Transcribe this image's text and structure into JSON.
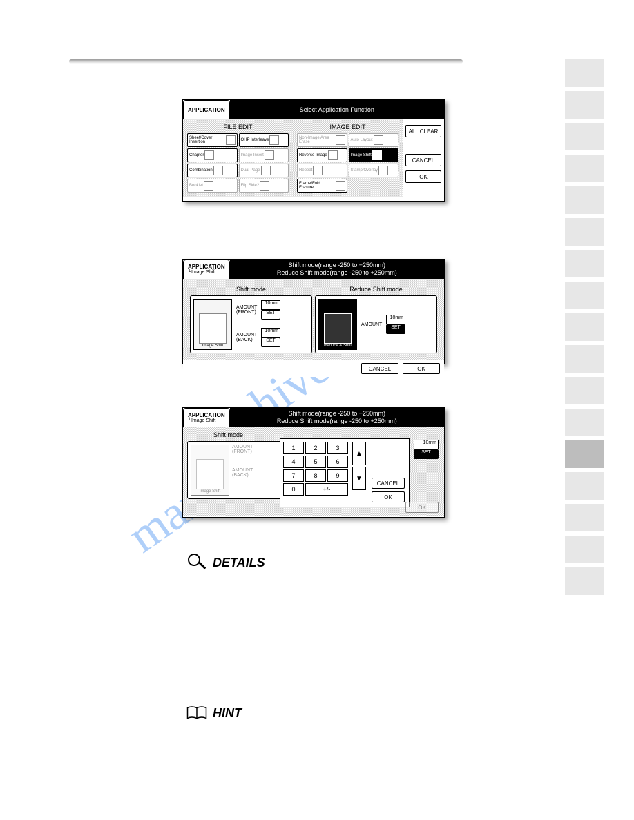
{
  "watermark": "manualshive.com",
  "sidebar": {
    "active_index": 12,
    "count": 17
  },
  "details_label": "DETAILS",
  "hint_label": "HINT",
  "screen1": {
    "tab": "APPLICATION",
    "title": "Select Application Function",
    "file_edit_label": "FILE EDIT",
    "image_edit_label": "IMAGE EDIT",
    "buttons": {
      "all_clear": "ALL CLEAR",
      "cancel": "CANCEL",
      "ok": "OK"
    },
    "file_edit": [
      {
        "label": "Sheet/Cover Insertion",
        "dim": false
      },
      {
        "label": "OHP Interleave",
        "dim": false
      },
      {
        "label": "Chapter",
        "dim": false
      },
      {
        "label": "Image Insert",
        "dim": true
      },
      {
        "label": "Combination",
        "dim": false
      },
      {
        "label": "Dual Page",
        "dim": true
      },
      {
        "label": "Booklet",
        "dim": true
      },
      {
        "label": "Flip Side2",
        "dim": true
      }
    ],
    "image_edit": [
      {
        "label": "Non-Image Area Erase",
        "dim": true
      },
      {
        "label": "Auto Layout",
        "dim": true
      },
      {
        "label": "Reverse Image",
        "dim": false,
        "extra": "A▸A"
      },
      {
        "label": "Image Shift",
        "dim": false,
        "sel": true
      },
      {
        "label": "Repeat",
        "dim": true
      },
      {
        "label": "Stamp/Overlay",
        "dim": true
      },
      {
        "label": "Frame/Fold Erasure",
        "dim": false
      },
      {
        "label": "",
        "dim": true,
        "blank": true
      }
    ]
  },
  "screen2": {
    "tab": "APPLICATION",
    "sub": "└Image Shift",
    "title1": "Shift mode(range -250 to +250mm)",
    "title2": "Reduce Shift mode(range -250 to +250mm)",
    "shift_label": "Shift mode",
    "reduce_label": "Reduce Shift mode",
    "image_shift_label": "Image Shift",
    "reduce_shift_label": "Reduce & Shift",
    "amount_front": "AMOUNT (FRONT)",
    "amount_back": "AMOUNT (BACK)",
    "amount": "AMOUNT",
    "value_front": "10mm",
    "value_back": "10mm",
    "value_reduce": "10mm",
    "set": "SET",
    "cancel": "CANCEL",
    "ok": "OK"
  },
  "screen3": {
    "tab": "APPLICATION",
    "sub": "└Image Shift",
    "title1": "Shift mode(range -250 to +250mm)",
    "title2": "Reduce Shift mode(range -250 to +250mm)",
    "shift_label": "Shift mode",
    "image_shift_label": "Image Shift",
    "amount_front": "AMOUNT (FRONT)",
    "amount_back": "AMOUNT (BACK)",
    "value": "10mm",
    "set": "SET",
    "cancel": "CANCEL",
    "ok": "OK",
    "keys": [
      "1",
      "2",
      "3",
      "4",
      "5",
      "6",
      "7",
      "8",
      "9",
      "0",
      "+/-"
    ],
    "up": "▲",
    "down": "▼"
  }
}
